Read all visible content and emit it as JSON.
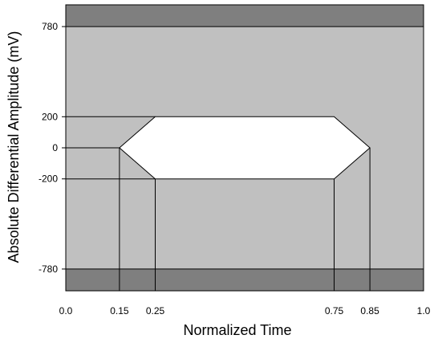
{
  "chart_data": {
    "type": "area",
    "title": "",
    "xlabel": "Normalized Time",
    "ylabel": "Absolute Differential Amplitude (mV)",
    "xlim": [
      0.0,
      1.0
    ],
    "ylim": [
      -920,
      920
    ],
    "x_ticks": [
      {
        "value": 0.0,
        "label": "0.0"
      },
      {
        "value": 0.15,
        "label": "0.15"
      },
      {
        "value": 0.25,
        "label": "0.25"
      },
      {
        "value": 0.75,
        "label": "0.75"
      },
      {
        "value": 0.85,
        "label": "0.85"
      },
      {
        "value": 1.0,
        "label": "1.0"
      }
    ],
    "y_ticks": [
      {
        "value": 780,
        "label": "780"
      },
      {
        "value": 200,
        "label": "200"
      },
      {
        "value": 0,
        "label": "0"
      },
      {
        "value": -200,
        "label": "-200"
      },
      {
        "value": -780,
        "label": "-780"
      }
    ],
    "eye_mask": {
      "x": [
        0.15,
        0.25,
        0.75,
        0.85,
        0.75,
        0.25
      ],
      "y": [
        0,
        200,
        200,
        0,
        -200,
        -200
      ]
    },
    "upper_limit_mV": 780,
    "lower_limit_mV": -780,
    "grid": false,
    "colors": {
      "outer_band": "#7f7f7f",
      "allowed_region": "#c0c0c0",
      "eye_opening": "#ffffff",
      "lines": "#000000"
    }
  }
}
